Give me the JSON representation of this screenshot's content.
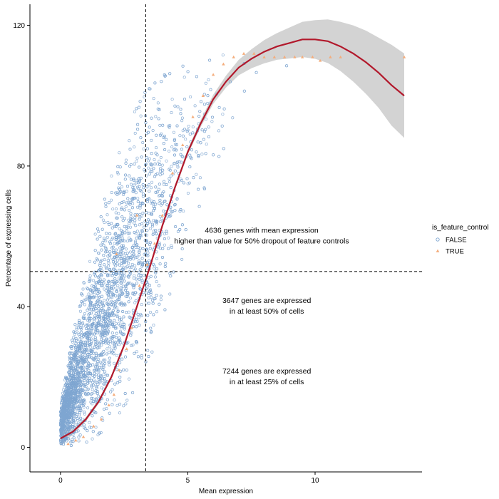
{
  "chart_data": {
    "type": "scatter",
    "title": "",
    "xlabel": "Mean expression",
    "ylabel": "Percentage of expressing cells",
    "xlim": [
      -1.2,
      14.2
    ],
    "ylim": [
      -7,
      126
    ],
    "x_ticks": [
      0,
      5,
      10
    ],
    "y_ticks": [
      0,
      40,
      80,
      120
    ],
    "grid": false,
    "legend": {
      "title": "is_feature_control",
      "placement": "right",
      "entries": [
        {
          "label": "FALSE",
          "marker": "open-circle",
          "color": "#7fa6d1"
        },
        {
          "label": "TRUE",
          "marker": "triangle",
          "color": "#f4ad7c"
        }
      ]
    },
    "reference_lines": {
      "vertical_x": 3.35,
      "horizontal_y": 50
    },
    "series": [
      {
        "name": "FALSE",
        "kind": "points",
        "marker": "open-circle",
        "color": "#7fa6d1",
        "point_count_estimate": 12000,
        "envelope": [
          {
            "x": 0.0,
            "y_low": 0,
            "y_high": 12
          },
          {
            "x": 0.5,
            "y_low": 0.5,
            "y_high": 33
          },
          {
            "x": 1.0,
            "y_low": 1,
            "y_high": 50
          },
          {
            "x": 1.5,
            "y_low": 3,
            "y_high": 65
          },
          {
            "x": 2.0,
            "y_low": 6,
            "y_high": 78
          },
          {
            "x": 2.5,
            "y_low": 10,
            "y_high": 90
          },
          {
            "x": 3.0,
            "y_low": 16,
            "y_high": 98
          },
          {
            "x": 3.5,
            "y_low": 24,
            "y_high": 103
          },
          {
            "x": 4.0,
            "y_low": 34,
            "y_high": 107
          },
          {
            "x": 4.5,
            "y_low": 45,
            "y_high": 109
          },
          {
            "x": 5.0,
            "y_low": 57,
            "y_high": 111
          },
          {
            "x": 5.5,
            "y_low": 68,
            "y_high": 112
          },
          {
            "x": 6.0,
            "y_low": 77,
            "y_high": 113
          },
          {
            "x": 6.5,
            "y_low": 85,
            "y_high": 114
          },
          {
            "x": 7.0,
            "y_low": 91,
            "y_high": 114
          },
          {
            "x": 7.5,
            "y_low": 96,
            "y_high": 115
          },
          {
            "x": 8.0,
            "y_low": 100,
            "y_high": 115
          },
          {
            "x": 8.5,
            "y_low": 103,
            "y_high": 115
          },
          {
            "x": 9.0,
            "y_low": 106,
            "y_high": 116
          }
        ]
      },
      {
        "name": "TRUE",
        "kind": "points",
        "marker": "triangle",
        "color": "#f4ad7c",
        "points": [
          [
            0.3,
            1
          ],
          [
            0.6,
            2
          ],
          [
            0.9,
            3
          ],
          [
            1.3,
            6
          ],
          [
            1.6,
            8
          ],
          [
            1.9,
            12
          ],
          [
            2.1,
            15
          ],
          [
            2.3,
            22
          ],
          [
            2.6,
            28
          ],
          [
            2.8,
            34
          ],
          [
            3.1,
            46
          ],
          [
            3.4,
            52
          ],
          [
            3.7,
            58
          ],
          [
            4.0,
            66
          ],
          [
            4.4,
            78
          ],
          [
            4.8,
            86
          ],
          [
            5.2,
            94
          ],
          [
            5.6,
            100
          ],
          [
            6.0,
            106
          ],
          [
            6.4,
            109
          ],
          [
            6.8,
            111
          ],
          [
            7.2,
            112
          ],
          [
            7.6,
            112
          ],
          [
            8.0,
            111
          ],
          [
            8.4,
            111
          ],
          [
            8.8,
            111
          ],
          [
            9.2,
            111
          ],
          [
            9.5,
            111
          ],
          [
            9.9,
            111
          ],
          [
            10.2,
            110
          ],
          [
            10.6,
            111
          ],
          [
            11.0,
            111
          ],
          [
            13.5,
            111
          ],
          [
            2.2,
            55
          ],
          [
            3.0,
            66
          ]
        ]
      },
      {
        "name": "",
        "kind": "smooth",
        "color": "#b2182b",
        "ci_color": "#d3d3d3",
        "curve": [
          {
            "x": 0.0,
            "y": 2.5,
            "lo": 0.3,
            "hi": 4.7
          },
          {
            "x": 0.5,
            "y": 4.5,
            "lo": 3.8,
            "hi": 5.2
          },
          {
            "x": 1.0,
            "y": 8,
            "lo": 7.4,
            "hi": 8.6
          },
          {
            "x": 1.5,
            "y": 13,
            "lo": 12.4,
            "hi": 13.6
          },
          {
            "x": 2.0,
            "y": 20,
            "lo": 19.4,
            "hi": 20.6
          },
          {
            "x": 2.5,
            "y": 29,
            "lo": 28.4,
            "hi": 29.6
          },
          {
            "x": 3.0,
            "y": 40,
            "lo": 39.4,
            "hi": 40.6
          },
          {
            "x": 3.5,
            "y": 51,
            "lo": 50.4,
            "hi": 51.6
          },
          {
            "x": 4.0,
            "y": 63,
            "lo": 62.4,
            "hi": 63.6
          },
          {
            "x": 4.5,
            "y": 74,
            "lo": 73.3,
            "hi": 74.7
          },
          {
            "x": 5.0,
            "y": 84,
            "lo": 83.2,
            "hi": 84.8
          },
          {
            "x": 5.5,
            "y": 92,
            "lo": 91.0,
            "hi": 93.0
          },
          {
            "x": 6.0,
            "y": 99,
            "lo": 97.7,
            "hi": 100.3
          },
          {
            "x": 6.5,
            "y": 104,
            "lo": 102.3,
            "hi": 105.7
          },
          {
            "x": 7.0,
            "y": 108,
            "lo": 105.8,
            "hi": 110.2
          },
          {
            "x": 7.5,
            "y": 110.5,
            "lo": 107.8,
            "hi": 113.2
          },
          {
            "x": 8.0,
            "y": 112.5,
            "lo": 109.2,
            "hi": 115.8
          },
          {
            "x": 8.5,
            "y": 114,
            "lo": 110.2,
            "hi": 117.8
          },
          {
            "x": 9.0,
            "y": 115,
            "lo": 110.6,
            "hi": 119.4
          },
          {
            "x": 9.5,
            "y": 116,
            "lo": 111.0,
            "hi": 121.0
          },
          {
            "x": 10.0,
            "y": 116,
            "lo": 110.5,
            "hi": 121.5
          },
          {
            "x": 10.5,
            "y": 115.5,
            "lo": 109.3,
            "hi": 121.7
          },
          {
            "x": 11.0,
            "y": 114,
            "lo": 107.0,
            "hi": 121.0
          },
          {
            "x": 11.5,
            "y": 112,
            "lo": 104.0,
            "hi": 120.0
          },
          {
            "x": 12.0,
            "y": 109.5,
            "lo": 100.5,
            "hi": 118.5
          },
          {
            "x": 12.5,
            "y": 106.5,
            "lo": 96.5,
            "hi": 116.5
          },
          {
            "x": 13.0,
            "y": 103,
            "lo": 91.5,
            "hi": 114.5
          },
          {
            "x": 13.5,
            "y": 100,
            "lo": 88.0,
            "hi": 112.0
          }
        ]
      }
    ],
    "annotations": [
      {
        "lines": [
          "4636 genes with mean expression",
          "higher than value for 50% dropout of feature controls"
        ],
        "x": 7.9,
        "y": 61
      },
      {
        "lines": [
          "3647 genes are expressed",
          "in at least 50% of cells"
        ],
        "x": 8.1,
        "y": 41
      },
      {
        "lines": [
          "7244 genes are expressed",
          "in at least 25% of cells"
        ],
        "x": 8.1,
        "y": 21
      }
    ]
  }
}
